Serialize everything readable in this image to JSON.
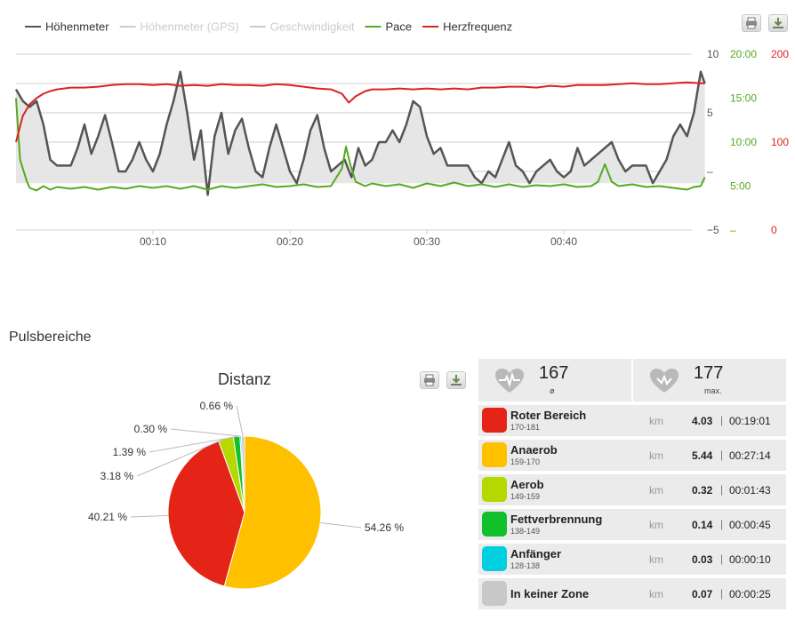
{
  "chart_data": [
    {
      "type": "line",
      "legend": [
        "Höhenmeter",
        "Höhenmeter (GPS)",
        "Geschwindigkeit",
        "Pace",
        "Herzfrequenz"
      ],
      "legend_colors": [
        "#555555",
        "#cccccc",
        "#cccccc",
        "#55aa22",
        "#dd2222"
      ],
      "legend_disabled": [
        false,
        true,
        true,
        false,
        false
      ],
      "legend_placement": "top-left",
      "grid": true,
      "x_range_min": [
        0,
        50
      ],
      "x_ticks": [
        10,
        20,
        30,
        40
      ],
      "x_tick_labels": [
        "00:10",
        "00:20",
        "00:30",
        "00:40"
      ],
      "axes": {
        "elevation": {
          "ylim": [
            -5,
            10
          ],
          "tick_values": [
            -5,
            0,
            5,
            10
          ],
          "tick_labels": [
            "−5",
            "–",
            "5",
            "10"
          ],
          "color": "#555555"
        },
        "pace": {
          "ylim": [
            0,
            20
          ],
          "tick_values": [
            0,
            5,
            10,
            15,
            20
          ],
          "tick_labels": [
            "–",
            "5:00",
            "10:00",
            "15:00",
            "20:00"
          ],
          "color": "#55aa22"
        },
        "heart_rate": {
          "ylim": [
            0,
            200
          ],
          "tick_values": [
            0,
            100,
            200
          ],
          "tick_labels": [
            "0",
            "100",
            "200"
          ],
          "color": "#dd2222"
        }
      },
      "series": [
        {
          "name": "Höhenmeter",
          "axis": "elevation",
          "color": "#555555",
          "filled": true,
          "points": [
            [
              0,
              7
            ],
            [
              0.5,
              6
            ],
            [
              1,
              5.5
            ],
            [
              1.5,
              6
            ],
            [
              2,
              4
            ],
            [
              2.5,
              1
            ],
            [
              3,
              0.5
            ],
            [
              4,
              0.5
            ],
            [
              4.5,
              2
            ],
            [
              5,
              4
            ],
            [
              5.5,
              1.5
            ],
            [
              6,
              3
            ],
            [
              6.5,
              4.8
            ],
            [
              7,
              2.5
            ],
            [
              7.5,
              0
            ],
            [
              8,
              0
            ],
            [
              8.5,
              1
            ],
            [
              9,
              2.5
            ],
            [
              9.5,
              1
            ],
            [
              10,
              0
            ],
            [
              10.5,
              1.5
            ],
            [
              11,
              4
            ],
            [
              11.5,
              6
            ],
            [
              12,
              8.5
            ],
            [
              12.5,
              5
            ],
            [
              13,
              1
            ],
            [
              13.5,
              3.5
            ],
            [
              14,
              -2
            ],
            [
              14.5,
              3
            ],
            [
              15,
              5
            ],
            [
              15.5,
              1.5
            ],
            [
              16,
              3.5
            ],
            [
              16.5,
              4.5
            ],
            [
              17,
              2
            ],
            [
              17.5,
              0
            ],
            [
              18,
              -0.5
            ],
            [
              18.5,
              2
            ],
            [
              19,
              4
            ],
            [
              19.5,
              2
            ],
            [
              20,
              0
            ],
            [
              20.5,
              -1
            ],
            [
              21,
              1
            ],
            [
              21.5,
              3.5
            ],
            [
              22,
              4.8
            ],
            [
              22.5,
              2
            ],
            [
              23,
              0
            ],
            [
              23.5,
              0.5
            ],
            [
              24,
              1
            ],
            [
              24.5,
              -0.5
            ],
            [
              25,
              2
            ],
            [
              25.5,
              0.5
            ],
            [
              26,
              1
            ],
            [
              26.5,
              2.5
            ],
            [
              27,
              2.5
            ],
            [
              27.5,
              3.5
            ],
            [
              28,
              2.5
            ],
            [
              28.5,
              4
            ],
            [
              29,
              6
            ],
            [
              29.5,
              5.5
            ],
            [
              30,
              3
            ],
            [
              30.5,
              1.5
            ],
            [
              31,
              2
            ],
            [
              31.5,
              0.5
            ],
            [
              32,
              0.5
            ],
            [
              33,
              0.5
            ],
            [
              33.5,
              -0.5
            ],
            [
              34,
              -1
            ],
            [
              34.5,
              0
            ],
            [
              35,
              -0.5
            ],
            [
              35.5,
              1
            ],
            [
              36,
              2.5
            ],
            [
              36.5,
              0.5
            ],
            [
              37,
              0
            ],
            [
              37.5,
              -1
            ],
            [
              38,
              0
            ],
            [
              38.5,
              0.5
            ],
            [
              39,
              1
            ],
            [
              39.5,
              0
            ],
            [
              40,
              -0.5
            ],
            [
              40.5,
              0
            ],
            [
              41,
              2
            ],
            [
              41.5,
              0.5
            ],
            [
              42,
              1
            ],
            [
              42.5,
              1.5
            ],
            [
              43,
              2
            ],
            [
              43.5,
              2.5
            ],
            [
              44,
              1
            ],
            [
              44.5,
              0
            ],
            [
              45,
              0.5
            ],
            [
              46,
              0.5
            ],
            [
              46.5,
              -1
            ],
            [
              47,
              0
            ],
            [
              47.5,
              1
            ],
            [
              48,
              3
            ],
            [
              48.5,
              4
            ],
            [
              49,
              3
            ],
            [
              49.5,
              5
            ],
            [
              50,
              8.5
            ],
            [
              50.3,
              7.5
            ]
          ]
        },
        {
          "name": "Pace",
          "axis": "pace",
          "color": "#55aa22",
          "filled": false,
          "points": [
            [
              0,
              15
            ],
            [
              0.3,
              8
            ],
            [
              0.8,
              5.5
            ],
            [
              1,
              4.8
            ],
            [
              1.5,
              4.5
            ],
            [
              2,
              5
            ],
            [
              2.5,
              4.6
            ],
            [
              3,
              4.9
            ],
            [
              4,
              4.7
            ],
            [
              5,
              4.9
            ],
            [
              6,
              4.6
            ],
            [
              7,
              4.9
            ],
            [
              8,
              4.7
            ],
            [
              9,
              5
            ],
            [
              10,
              4.8
            ],
            [
              11,
              5
            ],
            [
              12,
              4.7
            ],
            [
              13,
              5
            ],
            [
              14,
              4.6
            ],
            [
              15,
              5
            ],
            [
              16,
              4.8
            ],
            [
              17,
              5
            ],
            [
              18,
              5.2
            ],
            [
              19,
              4.9
            ],
            [
              20,
              5
            ],
            [
              21,
              5.2
            ],
            [
              22,
              4.9
            ],
            [
              23,
              5
            ],
            [
              23.8,
              7
            ],
            [
              24.1,
              9.5
            ],
            [
              24.4,
              7.5
            ],
            [
              24.8,
              5.5
            ],
            [
              25.5,
              5
            ],
            [
              26,
              5.3
            ],
            [
              27,
              5
            ],
            [
              28,
              5.2
            ],
            [
              29,
              4.8
            ],
            [
              30,
              5.3
            ],
            [
              31,
              5
            ],
            [
              32,
              5.4
            ],
            [
              33,
              5
            ],
            [
              34,
              5.2
            ],
            [
              35,
              4.9
            ],
            [
              36,
              5.2
            ],
            [
              37,
              4.9
            ],
            [
              38,
              5.1
            ],
            [
              39,
              5
            ],
            [
              40,
              5.2
            ],
            [
              41,
              4.9
            ],
            [
              42,
              5
            ],
            [
              42.5,
              5.5
            ],
            [
              43,
              7.5
            ],
            [
              43.5,
              5.5
            ],
            [
              44,
              5
            ],
            [
              45,
              5.2
            ],
            [
              46,
              4.9
            ],
            [
              47,
              5
            ],
            [
              48,
              4.8
            ],
            [
              49,
              4.6
            ],
            [
              49.5,
              4.9
            ],
            [
              50,
              5
            ],
            [
              50.3,
              6
            ]
          ]
        },
        {
          "name": "Herzfrequenz",
          "axis": "heart_rate",
          "color": "#dd2222",
          "filled": false,
          "points": [
            [
              0,
              100
            ],
            [
              0.5,
              130
            ],
            [
              1,
              143
            ],
            [
              1.5,
              150
            ],
            [
              2,
              155
            ],
            [
              2.5,
              158
            ],
            [
              3,
              160
            ],
            [
              4,
              162
            ],
            [
              5,
              162
            ],
            [
              6,
              163
            ],
            [
              7,
              165
            ],
            [
              8,
              166
            ],
            [
              9,
              166
            ],
            [
              10,
              165
            ],
            [
              11,
              166
            ],
            [
              12,
              164
            ],
            [
              13,
              165
            ],
            [
              14,
              164
            ],
            [
              15,
              166
            ],
            [
              16,
              165
            ],
            [
              17,
              165
            ],
            [
              18,
              164
            ],
            [
              19,
              166
            ],
            [
              20,
              165
            ],
            [
              21,
              163
            ],
            [
              22,
              161
            ],
            [
              23,
              160
            ],
            [
              23.8,
              155
            ],
            [
              24.3,
              145
            ],
            [
              24.8,
              152
            ],
            [
              25.5,
              158
            ],
            [
              26,
              160
            ],
            [
              27,
              160
            ],
            [
              28,
              161
            ],
            [
              29,
              160
            ],
            [
              30,
              161
            ],
            [
              31,
              160
            ],
            [
              32,
              161
            ],
            [
              33,
              160
            ],
            [
              34,
              162
            ],
            [
              35,
              162
            ],
            [
              36,
              163
            ],
            [
              37,
              163
            ],
            [
              38,
              162
            ],
            [
              39,
              164
            ],
            [
              40,
              163
            ],
            [
              41,
              165
            ],
            [
              42,
              165
            ],
            [
              43,
              165
            ],
            [
              44,
              166
            ],
            [
              45,
              167
            ],
            [
              46,
              166
            ],
            [
              47,
              166
            ],
            [
              48,
              167
            ],
            [
              49,
              168
            ],
            [
              50,
              167
            ],
            [
              50.3,
              167
            ]
          ]
        }
      ]
    },
    {
      "type": "pie",
      "title": "Distanz",
      "categories": [
        "Anaerob",
        "Roter Bereich",
        "Aerob",
        "Fettverbrennung",
        "Anfänger",
        "In keiner Zone"
      ],
      "values": [
        54.26,
        40.21,
        3.18,
        1.39,
        0.3,
        0.66
      ],
      "labels": [
        "54.26 %",
        "40.21 %",
        "3.18 %",
        "1.39 %",
        "0.30 %",
        "0.66 %"
      ],
      "colors": [
        "#ffc000",
        "#e32417",
        "#b4d800",
        "#12c02c",
        "#00cfe0",
        "#c8c8c8"
      ]
    }
  ],
  "section_title": "Pulsbereiche",
  "stats": {
    "avg": {
      "value": "167",
      "label": "ø"
    },
    "max": {
      "value": "177",
      "label": "max."
    },
    "zones": [
      {
        "name": "Roter Bereich",
        "range": "170-181",
        "color": "#e32417",
        "unit": "km",
        "km": "4.03",
        "time": "00:19:01"
      },
      {
        "name": "Anaerob",
        "range": "159-170",
        "color": "#ffc000",
        "unit": "km",
        "km": "5.44",
        "time": "00:27:14"
      },
      {
        "name": "Aerob",
        "range": "149-159",
        "color": "#b4d800",
        "unit": "km",
        "km": "0.32",
        "time": "00:01:43"
      },
      {
        "name": "Fettverbrennung",
        "range": "138-149",
        "color": "#12c02c",
        "unit": "km",
        "km": "0.14",
        "time": "00:00:45"
      },
      {
        "name": "Anfänger",
        "range": "128-138",
        "color": "#00cfe0",
        "unit": "km",
        "km": "0.03",
        "time": "00:00:10"
      },
      {
        "name": "In keiner Zone",
        "range": "",
        "color": "#c8c8c8",
        "unit": "km",
        "km": "0.07",
        "time": "00:00:25"
      }
    ]
  },
  "icons": {
    "print": "print-icon",
    "download": "download-icon",
    "heart": "heart-icon",
    "heart-pulse": "heart-pulse-icon"
  }
}
